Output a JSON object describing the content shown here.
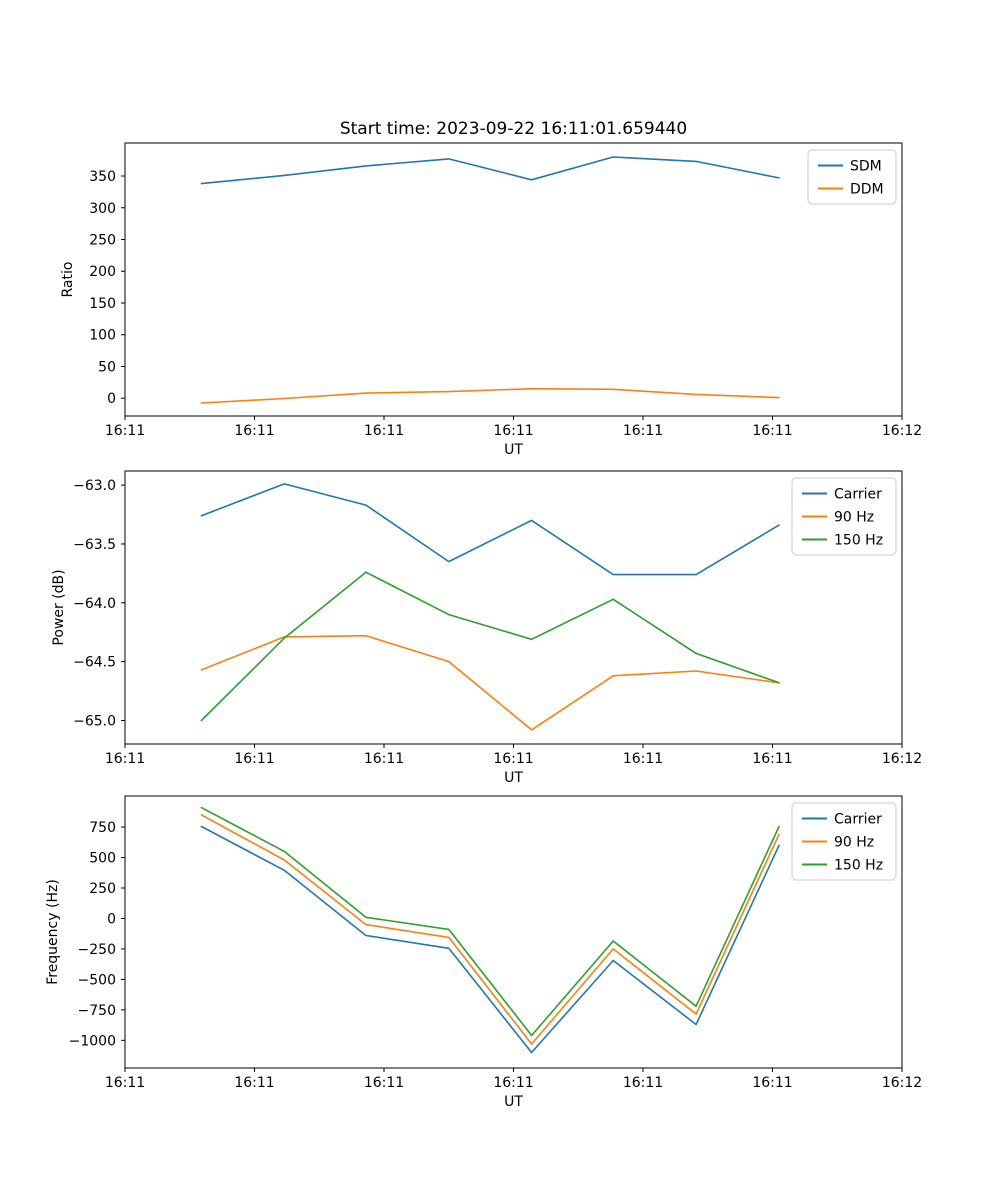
{
  "figure": {
    "title": "Start time: 2023-09-22 16:11:01.659440",
    "background": "#ffffff",
    "text_color": "#000000",
    "spine_color": "#000000"
  },
  "chart_data": [
    {
      "type": "line",
      "title": "Start time: 2023-09-22 16:11:01.659440",
      "xlabel": "UT",
      "ylabel": "Ratio",
      "xlim": [
        0,
        60
      ],
      "ylim": [
        -28,
        402
      ],
      "x_seconds": [
        5.9,
        12.3,
        18.6,
        25.0,
        31.4,
        37.7,
        44.1,
        50.5
      ],
      "xticks": [
        {
          "value": 0,
          "label": "16:11"
        },
        {
          "value": 10,
          "label": "16:11"
        },
        {
          "value": 20,
          "label": "16:11"
        },
        {
          "value": 30,
          "label": "16:11"
        },
        {
          "value": 40,
          "label": "16:11"
        },
        {
          "value": 50,
          "label": "16:11"
        },
        {
          "value": 60,
          "label": "16:12"
        }
      ],
      "yticks": [
        {
          "value": 0,
          "label": "0"
        },
        {
          "value": 50,
          "label": "50"
        },
        {
          "value": 100,
          "label": "100"
        },
        {
          "value": 150,
          "label": "150"
        },
        {
          "value": 200,
          "label": "200"
        },
        {
          "value": 250,
          "label": "250"
        },
        {
          "value": 300,
          "label": "300"
        },
        {
          "value": 350,
          "label": "350"
        }
      ],
      "legend_position": "upper right",
      "grid": false,
      "series": [
        {
          "name": "SDM",
          "color": "#1f77b4",
          "values": [
            338,
            351,
            366,
            377,
            344,
            380,
            373,
            347
          ]
        },
        {
          "name": "DDM",
          "color": "#ff7f0e",
          "values": [
            -7.5,
            -0.5,
            8,
            10.5,
            15,
            14,
            6,
            1
          ]
        }
      ]
    },
    {
      "type": "line",
      "title": "",
      "xlabel": "UT",
      "ylabel": "Power (dB)",
      "xlim": [
        0,
        60
      ],
      "ylim": [
        -65.2,
        -62.88
      ],
      "x_seconds": [
        5.9,
        12.3,
        18.6,
        25.0,
        31.4,
        37.7,
        44.1,
        50.5
      ],
      "xticks": [
        {
          "value": 0,
          "label": "16:11"
        },
        {
          "value": 10,
          "label": "16:11"
        },
        {
          "value": 20,
          "label": "16:11"
        },
        {
          "value": 30,
          "label": "16:11"
        },
        {
          "value": 40,
          "label": "16:11"
        },
        {
          "value": 50,
          "label": "16:11"
        },
        {
          "value": 60,
          "label": "16:12"
        }
      ],
      "yticks": [
        {
          "value": -65.0,
          "label": "−65.0"
        },
        {
          "value": -64.5,
          "label": "−64.5"
        },
        {
          "value": -64.0,
          "label": "−64.0"
        },
        {
          "value": -63.5,
          "label": "−63.5"
        },
        {
          "value": -63.0,
          "label": "−63.0"
        }
      ],
      "legend_position": "upper right",
      "grid": false,
      "series": [
        {
          "name": "Carrier",
          "color": "#1f77b4",
          "values": [
            -63.26,
            -62.99,
            -63.17,
            -63.65,
            -63.3,
            -63.76,
            -63.76,
            -63.34
          ]
        },
        {
          "name": "90 Hz",
          "color": "#ff7f0e",
          "values": [
            -64.57,
            -64.29,
            -64.28,
            -64.5,
            -65.08,
            -64.62,
            -64.58,
            -64.68
          ]
        },
        {
          "name": "150 Hz",
          "color": "#2ca02c",
          "values": [
            -65.0,
            -64.3,
            -63.74,
            -64.1,
            -64.31,
            -63.97,
            -64.43,
            -64.68
          ]
        }
      ]
    },
    {
      "type": "line",
      "title": "",
      "xlabel": "UT",
      "ylabel": "Frequency (Hz)",
      "xlim": [
        0,
        60
      ],
      "ylim": [
        -1227,
        1005
      ],
      "x_seconds": [
        5.9,
        12.3,
        18.6,
        25.0,
        31.4,
        37.7,
        44.1,
        50.5
      ],
      "xticks": [
        {
          "value": 0,
          "label": "16:11"
        },
        {
          "value": 10,
          "label": "16:11"
        },
        {
          "value": 20,
          "label": "16:11"
        },
        {
          "value": 30,
          "label": "16:11"
        },
        {
          "value": 40,
          "label": "16:11"
        },
        {
          "value": 50,
          "label": "16:11"
        },
        {
          "value": 60,
          "label": "16:12"
        }
      ],
      "yticks": [
        {
          "value": 750,
          "label": "750"
        },
        {
          "value": 500,
          "label": "500"
        },
        {
          "value": 250,
          "label": "250"
        },
        {
          "value": 0,
          "label": "0"
        },
        {
          "value": -250,
          "label": "−250"
        },
        {
          "value": -500,
          "label": "−500"
        },
        {
          "value": -750,
          "label": "−750"
        },
        {
          "value": -1000,
          "label": "−1000"
        }
      ],
      "legend_position": "upper right",
      "grid": false,
      "series": [
        {
          "name": "Carrier",
          "color": "#1f77b4",
          "values": [
            755,
            395,
            -140,
            -245,
            -1100,
            -345,
            -870,
            600
          ]
        },
        {
          "name": "90 Hz",
          "color": "#ff7f0e",
          "values": [
            850,
            480,
            -50,
            -155,
            -1030,
            -250,
            -785,
            690
          ]
        },
        {
          "name": "150 Hz",
          "color": "#2ca02c",
          "values": [
            910,
            550,
            10,
            -90,
            -960,
            -185,
            -720,
            755
          ]
        }
      ]
    }
  ]
}
